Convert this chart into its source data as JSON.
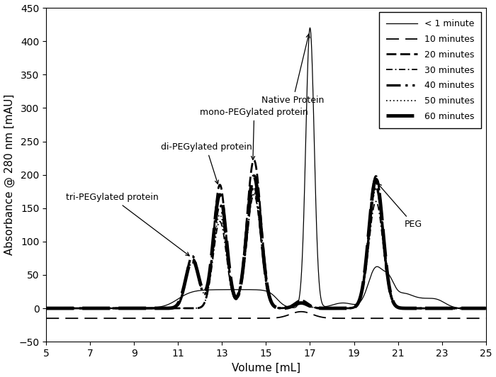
{
  "title": "",
  "xlabel": "Volume [mL]",
  "ylabel": "Absorbance @ 280 nm [mAU]",
  "xlim": [
    5,
    25
  ],
  "ylim": [
    -50,
    450
  ],
  "xticks": [
    5,
    7,
    9,
    11,
    13,
    15,
    17,
    19,
    21,
    23,
    25
  ],
  "yticks": [
    -50,
    0,
    50,
    100,
    150,
    200,
    250,
    300,
    350,
    400,
    450
  ],
  "background_color": "#ffffff",
  "legend_labels": [
    "< 1 minute",
    "10 minutes",
    "20 minutes",
    "30 minutes",
    "40 minutes",
    "50 minutes",
    "60 minutes"
  ]
}
